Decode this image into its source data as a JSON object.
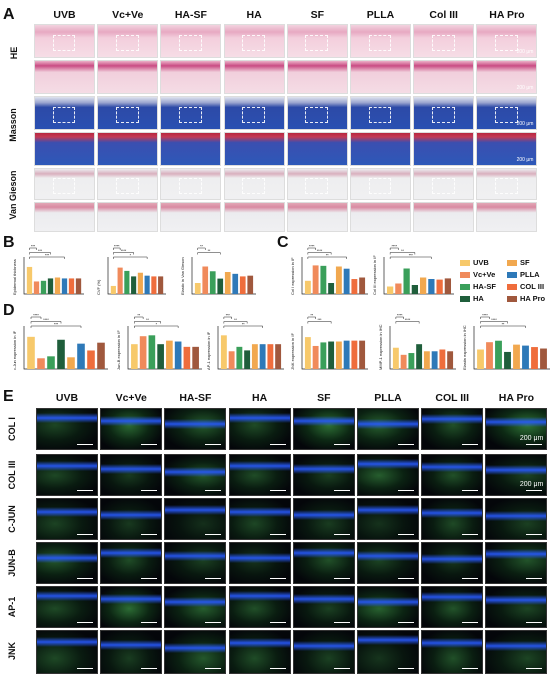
{
  "panel_labels": {
    "a": "A",
    "b": "B",
    "c": "C",
    "d": "D",
    "e": "E"
  },
  "groups": [
    "UVB",
    "Vc+Ve",
    "HA-SF",
    "HA",
    "SF",
    "PLLA",
    "Col III",
    "HA Pro"
  ],
  "groups_e": [
    "UVB",
    "Vc+Ve",
    "HA-SF",
    "HA",
    "SF",
    "PLLA",
    "COL III",
    "HA Pro"
  ],
  "stain_rows": [
    "HE",
    "Masson",
    "Van Gieson"
  ],
  "if_rows": [
    "COL I",
    "COL III",
    "C-JUN",
    "JUN-B",
    "AP-1",
    "JNK"
  ],
  "scale_label": "200 μm",
  "legend": [
    {
      "name": "UVB",
      "color": "#f7c96b"
    },
    {
      "name": "SF",
      "color": "#f1a84f"
    },
    {
      "name": "Vc+Ve",
      "color": "#f08a5b"
    },
    {
      "name": "PLLA",
      "color": "#2e79b8"
    },
    {
      "name": "HA-SF",
      "color": "#3a9f5a"
    },
    {
      "name": "COL III",
      "color": "#ef6d3c"
    },
    {
      "name": "HA",
      "color": "#1f5e3b"
    },
    {
      "name": "HA Pro",
      "color": "#a0583d"
    }
  ],
  "chart_data": [
    {
      "type": "bar",
      "ylabel": "Epidermal thickness",
      "categories": [
        "UVB",
        "Vc+Ve",
        "HA-SF",
        "HA",
        "SF",
        "PLLA",
        "Col III",
        "HA Pro"
      ],
      "values": [
        205,
        95,
        100,
        118,
        125,
        118,
        118,
        118
      ],
      "ylim": [
        0,
        250
      ],
      "sig": [
        "***",
        "***",
        "***"
      ]
    },
    {
      "type": "bar",
      "ylabel": "CVF (%)",
      "categories": [
        "UVB",
        "Vc+Ve",
        "HA-SF",
        "HA",
        "SF",
        "PLLA",
        "Col III",
        "HA Pro"
      ],
      "values": [
        22,
        72,
        63,
        48,
        58,
        50,
        48,
        48
      ],
      "ylim": [
        0,
        90
      ],
      "sig": [
        "****",
        "****",
        "*"
      ]
    },
    {
      "type": "bar",
      "ylabel": "Elastic in Van Gieson",
      "categories": [
        "UVB",
        "Vc+Ve",
        "HA-SF",
        "HA",
        "SF",
        "PLLA",
        "Col III",
        "HA Pro"
      ],
      "values": [
        30,
        75,
        62,
        42,
        60,
        55,
        48,
        50
      ],
      "ylim": [
        0,
        90
      ],
      "sig": [
        "**",
        "**"
      ]
    },
    {
      "type": "bar",
      "ylabel": "Col I expression in IF",
      "categories": [
        "UVB",
        "Vc+Ve",
        "HA-SF",
        "HA",
        "SF",
        "PLLA",
        "Col III",
        "HA Pro"
      ],
      "values": [
        60,
        130,
        128,
        50,
        125,
        115,
        68,
        75
      ],
      "ylim": [
        0,
        150
      ],
      "sig": [
        "****",
        "****",
        "**"
      ]
    },
    {
      "type": "bar",
      "ylabel": "Col III expression in IF",
      "categories": [
        "UVB",
        "Vc+Ve",
        "HA-SF",
        "HA",
        "SF",
        "PLLA",
        "Col III",
        "HA Pro"
      ],
      "values": [
        25,
        35,
        85,
        30,
        55,
        50,
        48,
        52
      ],
      "ylim": [
        0,
        110
      ],
      "sig": [
        "****",
        "**",
        "***"
      ]
    },
    {
      "type": "bar",
      "ylabel": "c-Jun expression in IF",
      "categories": [
        "UVB",
        "Vc+Ve",
        "HA-SF",
        "HA",
        "SF",
        "PLLA",
        "Col III",
        "HA Pro"
      ],
      "values": [
        165,
        55,
        65,
        150,
        60,
        130,
        95,
        135
      ],
      "ylim": [
        0,
        200
      ],
      "sig": [
        "****",
        "****",
        "***"
      ]
    },
    {
      "type": "bar",
      "ylabel": "Jun-B expression in IF",
      "categories": [
        "UVB",
        "Vc+Ve",
        "HA-SF",
        "HA",
        "SF",
        "PLLA",
        "Col III",
        "HA Pro"
      ],
      "values": [
        140,
        185,
        190,
        140,
        160,
        155,
        125,
        125
      ],
      "ylim": [
        0,
        220
      ],
      "sig": [
        "**",
        "**",
        "*"
      ]
    },
    {
      "type": "bar",
      "ylabel": "AP-1 expression in IF",
      "categories": [
        "UVB",
        "Vc+Ve",
        "HA-SF",
        "HA",
        "SF",
        "PLLA",
        "Col III",
        "HA Pro"
      ],
      "values": [
        190,
        100,
        125,
        105,
        140,
        140,
        140,
        140
      ],
      "ylim": [
        0,
        220
      ],
      "sig": [
        "***",
        "**",
        "**"
      ]
    },
    {
      "type": "bar",
      "ylabel": "JNK expression in IF",
      "categories": [
        "UVB",
        "Vc+Ve",
        "HA-SF",
        "HA",
        "SF",
        "PLLA",
        "Col III",
        "HA Pro"
      ],
      "values": [
        180,
        130,
        150,
        155,
        155,
        160,
        160,
        160
      ],
      "ylim": [
        0,
        220
      ],
      "sig": [
        "**",
        "***"
      ]
    },
    {
      "type": "bar",
      "ylabel": "MMP-1 expression in IHC",
      "categories": [
        "UVB",
        "Vc+Ve",
        "HA-SF",
        "HA",
        "SF",
        "PLLA",
        "Col III",
        "HA Pro"
      ],
      "values": [
        60,
        40,
        45,
        70,
        50,
        50,
        55,
        50
      ],
      "ylim": [
        0,
        110
      ],
      "sig": [
        "****",
        "****"
      ]
    },
    {
      "type": "bar",
      "ylabel": "Elastin expression in IHC",
      "categories": [
        "UVB",
        "Vc+Ve",
        "HA-SF",
        "HA",
        "SF",
        "PLLA",
        "Col III",
        "HA Pro"
      ],
      "values": [
        40,
        55,
        58,
        35,
        50,
        48,
        45,
        42
      ],
      "ylim": [
        0,
        80
      ],
      "sig": [
        "****",
        "****",
        "**"
      ]
    }
  ]
}
